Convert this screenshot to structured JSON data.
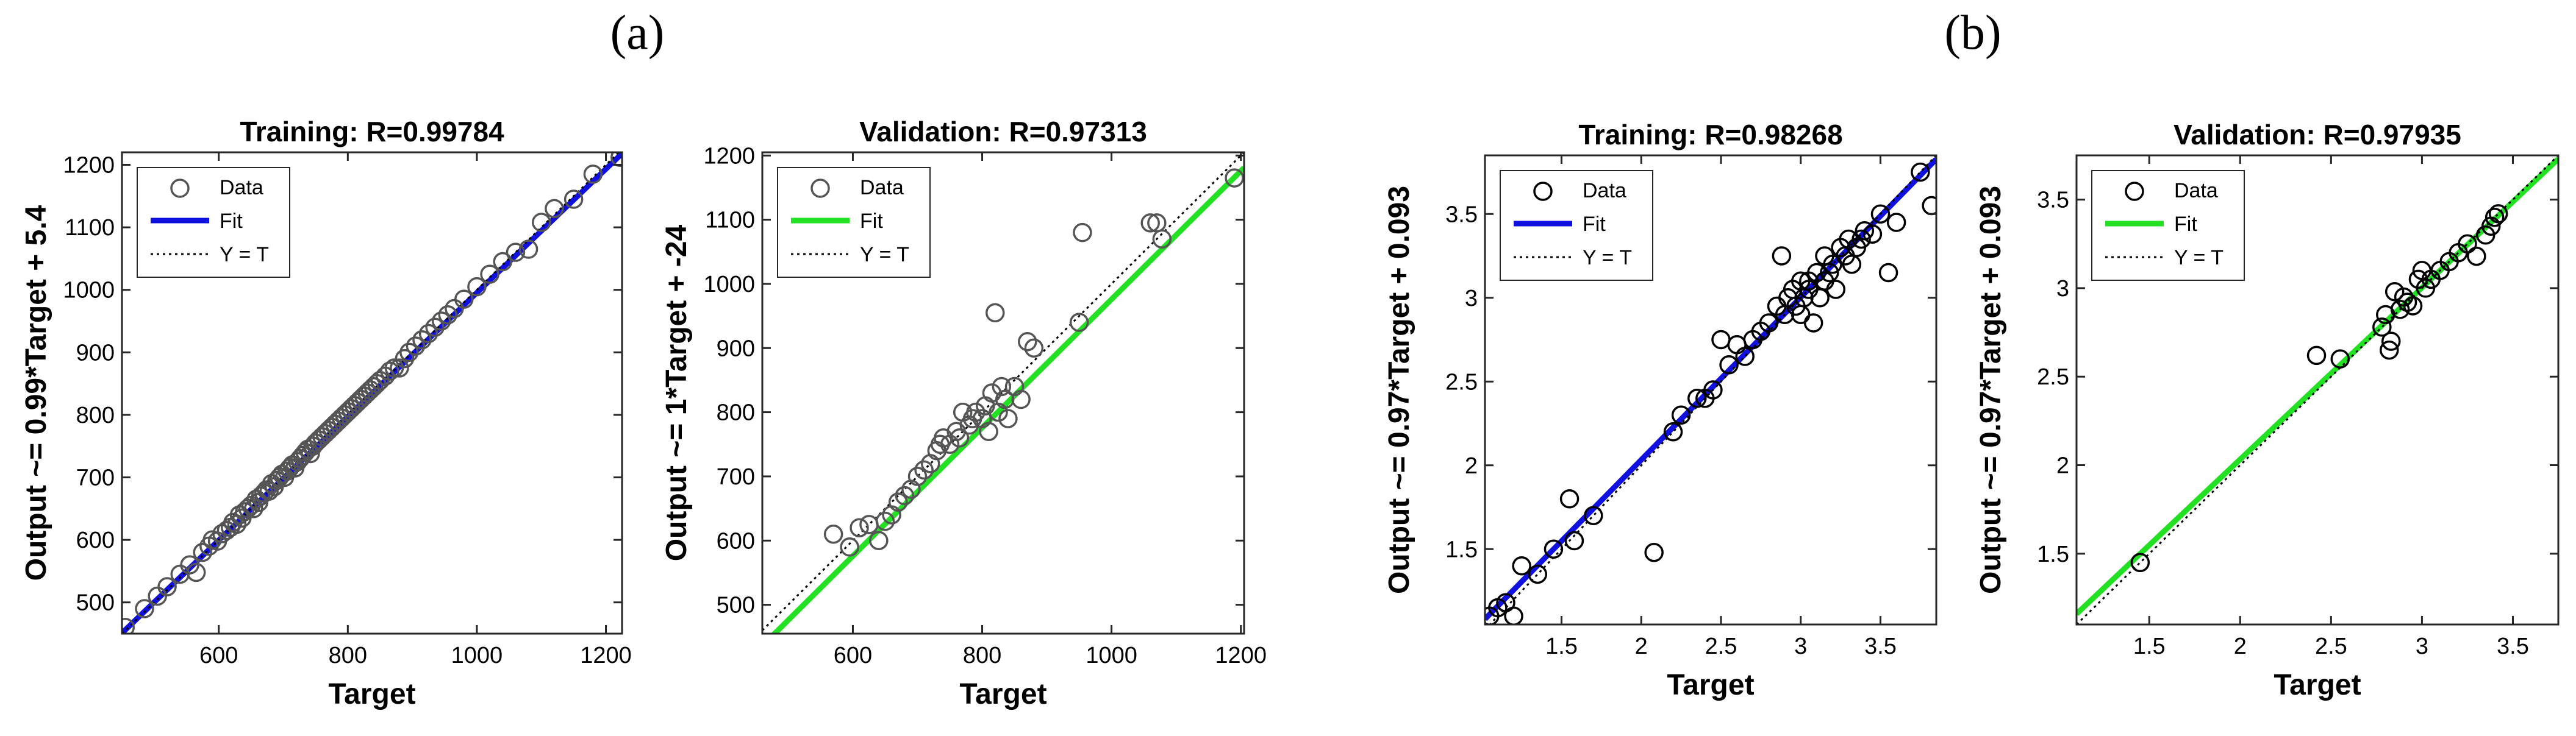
{
  "figure": {
    "panel_labels": [
      "(a)",
      "(b)"
    ]
  },
  "chart_data": [
    {
      "type": "scatter",
      "panel": "(a)",
      "title": "Training: R=0.99784",
      "xlabel": "Target",
      "ylabel": "Output ~= 0.99*Target + 5.4",
      "xlim": [
        450,
        1225
      ],
      "ylim": [
        450,
        1220
      ],
      "xticks": [
        600,
        800,
        1000,
        1200
      ],
      "yticks": [
        500,
        600,
        700,
        800,
        900,
        1000,
        1100,
        1200
      ],
      "grid": false,
      "legend": {
        "placement": "top-left",
        "entries": [
          "Data",
          "Fit",
          "Y = T"
        ]
      },
      "fit": {
        "slope": 0.99,
        "intercept": 5.4,
        "color": "#1010e0"
      },
      "identity_color": "#000000",
      "marker_color": "#555555",
      "data": {
        "x": [
          455,
          485,
          505,
          520,
          540,
          555,
          565,
          575,
          585,
          590,
          598,
          605,
          612,
          618,
          622,
          628,
          632,
          636,
          640,
          645,
          650,
          654,
          658,
          662,
          665,
          670,
          674,
          678,
          682,
          686,
          690,
          694,
          698,
          702,
          706,
          710,
          714,
          718,
          722,
          726,
          730,
          734,
          738,
          742,
          746,
          750,
          755,
          760,
          765,
          770,
          775,
          780,
          785,
          790,
          795,
          800,
          805,
          810,
          815,
          820,
          825,
          830,
          835,
          840,
          845,
          850,
          858,
          865,
          872,
          880,
          888,
          895,
          905,
          915,
          925,
          935,
          945,
          955,
          965,
          980,
          1000,
          1020,
          1040,
          1060,
          1080,
          1100,
          1120,
          1150,
          1180,
          1222
        ],
        "y": [
          460,
          490,
          510,
          525,
          545,
          560,
          548,
          580,
          590,
          600,
          598,
          610,
          615,
          620,
          628,
          625,
          640,
          635,
          645,
          650,
          655,
          650,
          665,
          660,
          670,
          675,
          680,
          678,
          690,
          685,
          695,
          700,
          705,
          700,
          710,
          715,
          720,
          715,
          725,
          730,
          735,
          740,
          745,
          738,
          750,
          755,
          760,
          765,
          770,
          775,
          780,
          785,
          790,
          795,
          800,
          805,
          810,
          815,
          820,
          825,
          830,
          835,
          840,
          845,
          850,
          855,
          862,
          870,
          875,
          875,
          890,
          900,
          910,
          920,
          930,
          940,
          950,
          960,
          970,
          985,
          1005,
          1025,
          1045,
          1060,
          1065,
          1108,
          1130,
          1145,
          1185,
          1212
        ]
      }
    },
    {
      "type": "scatter",
      "panel": "(a)",
      "title": "Validation: R=0.97313",
      "xlabel": "Target",
      "ylabel": "Output ~= 1*Target + -24",
      "xlim": [
        460,
        1205
      ],
      "ylim": [
        455,
        1205
      ],
      "xticks": [
        600,
        800,
        1000,
        1200
      ],
      "yticks": [
        500,
        600,
        700,
        800,
        900,
        1000,
        1100,
        1200
      ],
      "grid": false,
      "legend": {
        "placement": "top-left",
        "entries": [
          "Data",
          "Fit",
          "Y = T"
        ]
      },
      "fit": {
        "slope": 1,
        "intercept": -24,
        "color": "#22e022"
      },
      "identity_color": "#000000",
      "marker_color": "#555555",
      "data": {
        "x": [
          570,
          595,
          610,
          625,
          640,
          650,
          660,
          670,
          680,
          690,
          700,
          710,
          720,
          730,
          735,
          740,
          750,
          760,
          765,
          770,
          780,
          785,
          790,
          800,
          805,
          810,
          815,
          820,
          825,
          830,
          835,
          840,
          850,
          860,
          870,
          880,
          950,
          955,
          1060,
          1070,
          1078,
          1190
        ],
        "y": [
          610,
          590,
          620,
          625,
          600,
          630,
          640,
          660,
          670,
          680,
          700,
          710,
          720,
          740,
          750,
          760,
          750,
          770,
          760,
          800,
          780,
          790,
          800,
          790,
          810,
          770,
          830,
          955,
          800,
          840,
          820,
          790,
          840,
          820,
          910,
          900,
          940,
          1080,
          1095,
          1095,
          1070,
          1165
        ]
      }
    },
    {
      "type": "scatter",
      "panel": "(b)",
      "title": "Training: R=0.98268",
      "xlabel": "Target",
      "ylabel": "Output ~= 0.97*Target + 0.093",
      "xlim": [
        1.02,
        3.85
      ],
      "ylim": [
        1.05,
        3.85
      ],
      "xticks": [
        1.5,
        2,
        2.5,
        3,
        3.5
      ],
      "yticks": [
        1.5,
        2,
        2.5,
        3,
        3.5
      ],
      "grid": false,
      "legend": {
        "placement": "top-left",
        "entries": [
          "Data",
          "Fit",
          "Y = T"
        ]
      },
      "fit": {
        "slope": 0.97,
        "intercept": 0.093,
        "color": "#1010e0"
      },
      "identity_color": "#000000",
      "marker_color": "#000000",
      "data": {
        "x": [
          1.05,
          1.1,
          1.15,
          1.2,
          1.25,
          1.35,
          1.45,
          1.55,
          1.58,
          1.7,
          2.08,
          2.2,
          2.25,
          2.35,
          2.4,
          2.45,
          2.5,
          2.55,
          2.6,
          2.65,
          2.7,
          2.75,
          2.8,
          2.85,
          2.88,
          2.9,
          2.92,
          2.95,
          2.97,
          3.0,
          3.0,
          3.02,
          3.05,
          3.05,
          3.08,
          3.1,
          3.12,
          3.15,
          3.15,
          3.18,
          3.2,
          3.22,
          3.25,
          3.28,
          3.3,
          3.32,
          3.35,
          3.38,
          3.4,
          3.45,
          3.5,
          3.55,
          3.6,
          3.75,
          3.82
        ],
        "y": [
          1.1,
          1.15,
          1.18,
          1.1,
          1.4,
          1.35,
          1.5,
          1.8,
          1.55,
          1.7,
          1.48,
          2.2,
          2.3,
          2.4,
          2.4,
          2.45,
          2.75,
          2.6,
          2.72,
          2.65,
          2.75,
          2.8,
          2.85,
          2.95,
          3.25,
          2.9,
          3.0,
          3.05,
          2.95,
          2.9,
          3.1,
          3.0,
          3.05,
          3.1,
          2.85,
          3.15,
          3.0,
          3.1,
          3.25,
          3.15,
          3.2,
          3.05,
          3.3,
          3.25,
          3.35,
          3.2,
          3.3,
          3.35,
          3.4,
          3.38,
          3.5,
          3.15,
          3.45,
          3.75,
          3.55
        ]
      }
    },
    {
      "type": "scatter",
      "panel": "(b)",
      "title": "Validation: R=0.97935",
      "xlabel": "Target",
      "ylabel": "Output ~= 0.97*Target + 0.093",
      "xlim": [
        1.1,
        3.75
      ],
      "ylim": [
        1.1,
        3.75
      ],
      "xticks": [
        1.5,
        2,
        2.5,
        3,
        3.5
      ],
      "yticks": [
        1.5,
        2,
        2.5,
        3,
        3.5
      ],
      "grid": false,
      "legend": {
        "placement": "top-left",
        "entries": [
          "Data",
          "Fit",
          "Y = T"
        ]
      },
      "fit": {
        "slope": 0.97,
        "intercept": 0.093,
        "color": "#22e022"
      },
      "identity_color": "#000000",
      "marker_color": "#000000",
      "data": {
        "x": [
          1.45,
          2.42,
          2.55,
          2.78,
          2.8,
          2.82,
          2.83,
          2.85,
          2.88,
          2.9,
          2.92,
          2.95,
          2.98,
          3.0,
          3.02,
          3.05,
          3.1,
          3.15,
          3.2,
          3.25,
          3.3,
          3.35,
          3.38,
          3.4,
          3.42
        ],
        "y": [
          1.45,
          2.62,
          2.6,
          2.78,
          2.85,
          2.65,
          2.7,
          2.98,
          2.88,
          2.95,
          2.92,
          2.9,
          3.05,
          3.1,
          3.0,
          3.05,
          3.1,
          3.15,
          3.2,
          3.25,
          3.18,
          3.3,
          3.35,
          3.4,
          3.42
        ]
      }
    }
  ]
}
